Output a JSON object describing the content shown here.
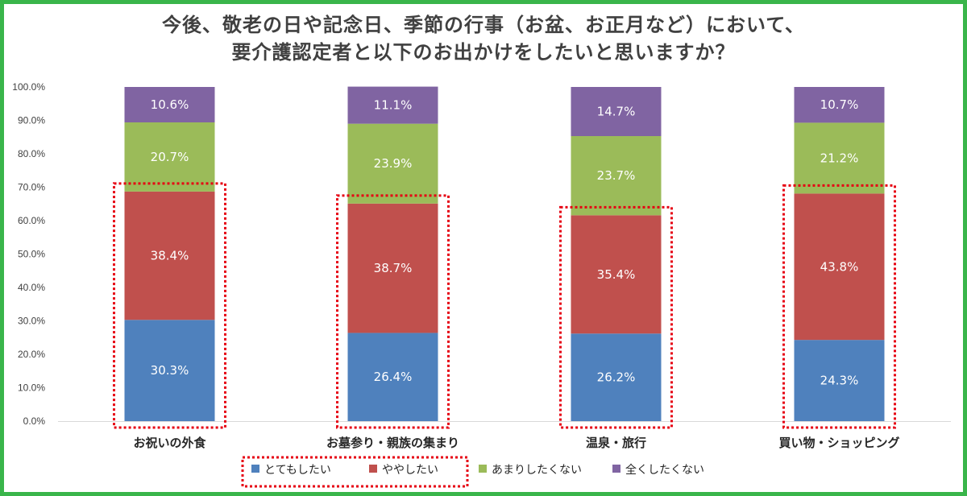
{
  "chart_data": {
    "type": "bar",
    "stacked": true,
    "title_lines": [
      "今後、敬老の日や記念日、季節の行事（お盆、お正月など）において、",
      "要介護認定者と以下のお出かけをしたいと思いますか？"
    ],
    "categories": [
      "お祝いの外食",
      "お墓参り・親族の集まり",
      "温泉・旅行",
      "買い物・ショッピング"
    ],
    "series": [
      {
        "name": "とてもしたい",
        "color": "#4f81bd",
        "values": [
          30.3,
          26.4,
          26.2,
          24.3
        ],
        "labels": [
          "30.3%",
          "26.4%",
          "26.2%",
          "24.3%"
        ]
      },
      {
        "name": "ややしたい",
        "color": "#c0504d",
        "values": [
          38.4,
          38.7,
          35.4,
          43.8
        ],
        "labels": [
          "38.4%",
          "38.7%",
          "35.4%",
          "43.8%"
        ]
      },
      {
        "name": "あまりしたくない",
        "color": "#9bbb59",
        "values": [
          20.7,
          23.9,
          23.7,
          21.2
        ],
        "labels": [
          "20.7%",
          "23.9%",
          "23.7%",
          "21.2%"
        ]
      },
      {
        "name": "全くしたくない",
        "color": "#8064a2",
        "values": [
          10.6,
          11.1,
          14.7,
          10.7
        ],
        "labels": [
          "10.6%",
          "11.1%",
          "14.7%",
          "10.7%"
        ]
      }
    ],
    "yticks": [
      "0.0%",
      "10.0%",
      "20.0%",
      "30.0%",
      "40.0%",
      "50.0%",
      "60.0%",
      "70.0%",
      "80.0%",
      "90.0%",
      "100.0%"
    ],
    "ylim": [
      0,
      100
    ],
    "grid": false,
    "legend": "bottom",
    "highlight_color": "#e60012"
  }
}
